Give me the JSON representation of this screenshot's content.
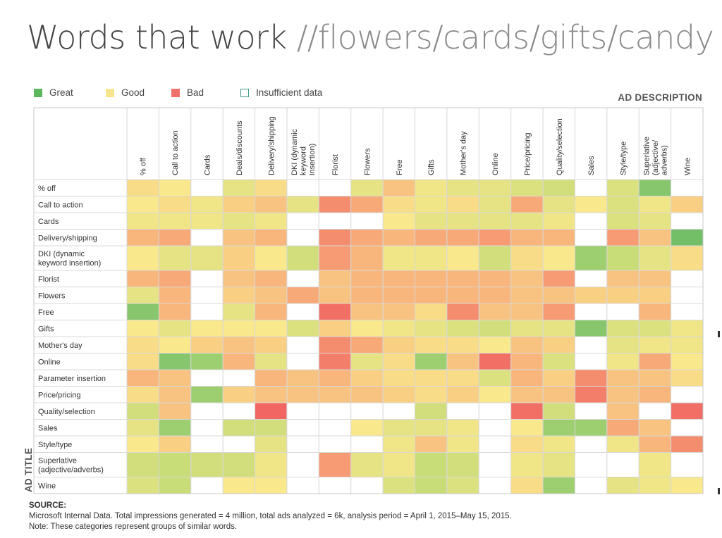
{
  "page": {
    "title_main": "Words that work",
    "title_sub": "//flowers/cards/gifts/candy"
  },
  "legend": [
    {
      "label": "Great",
      "color": "#5cb85c",
      "filled": true
    },
    {
      "label": "Good",
      "color": "#f6e58d",
      "filled": true
    },
    {
      "label": "Bad",
      "color": "#f0716a",
      "filled": true
    },
    {
      "label": "Insufficient data",
      "color": "#3a9a8a",
      "filled": false
    }
  ],
  "source": {
    "label": "SOURCE:",
    "line1": "Microsoft Internal Data. Total impressions generated = 4 million, total ads analyzed = 6k, analysis period = April 1, 2015–May 15, 2015.",
    "line2": "Note: These categories represent groups of similar words."
  },
  "chart_data": {
    "type": "heatmap",
    "title": "Words that work //flowers/cards/gifts/candy",
    "xlabel": "AD DESCRIPTION",
    "ylabel": "AD TITLE",
    "value_scale": "0 = Bad (red), 0.5 = Good (yellow), 1 = Great (green), null = Insufficient data",
    "columns": [
      "% off",
      "Call to action",
      "Cards",
      "Deals/discounts",
      "Delivery/shipping",
      "DKI (dynamic keyword insertion)",
      "Florist",
      "Flowers",
      "Free",
      "Gifts",
      "Mother's day",
      "Online",
      "Price/pricing",
      "Quality/selection",
      "Sales",
      "Style/type",
      "Superlative (adjective/ adverbs)",
      "Wine"
    ],
    "rows": [
      "% off",
      "Call to action",
      "Cards",
      "Delivery/shipping",
      "DKI (dynamic keyword insertion)",
      "Florist",
      "Flowers",
      "Free",
      "Gifts",
      "Mother's day",
      "Online",
      "Parameter insertion",
      "Price/pricing",
      "Quality/selection",
      "Sales",
      "Style/type",
      "Superlative (adjective/adverbs)",
      "Wine"
    ],
    "values": [
      [
        0.45,
        0.5,
        null,
        0.6,
        0.45,
        null,
        null,
        0.6,
        0.35,
        0.55,
        0.6,
        0.6,
        0.65,
        0.7,
        null,
        0.65,
        0.9,
        null
      ],
      [
        0.5,
        0.45,
        0.55,
        0.4,
        0.35,
        0.6,
        0.15,
        0.25,
        0.45,
        0.55,
        0.45,
        0.6,
        0.25,
        0.6,
        0.5,
        0.65,
        0.55,
        0.4
      ],
      [
        0.55,
        0.55,
        0.55,
        0.6,
        0.55,
        null,
        null,
        null,
        0.5,
        0.6,
        0.6,
        0.6,
        0.6,
        0.55,
        null,
        0.65,
        0.6,
        null
      ],
      [
        0.3,
        0.25,
        null,
        0.35,
        0.3,
        null,
        0.15,
        0.25,
        0.3,
        0.25,
        0.25,
        0.2,
        0.3,
        0.3,
        null,
        0.2,
        0.35,
        0.95
      ],
      [
        0.5,
        0.6,
        0.6,
        0.4,
        0.5,
        0.7,
        0.2,
        0.3,
        0.55,
        0.55,
        0.5,
        0.7,
        0.45,
        0.5,
        0.85,
        0.75,
        0.6,
        0.45
      ],
      [
        0.3,
        0.25,
        null,
        0.35,
        0.3,
        null,
        0.35,
        0.3,
        0.3,
        0.3,
        0.3,
        0.3,
        0.35,
        0.2,
        null,
        0.35,
        0.35,
        null
      ],
      [
        0.6,
        0.3,
        null,
        0.4,
        0.35,
        0.25,
        0.35,
        0.3,
        0.3,
        0.3,
        0.3,
        0.3,
        0.35,
        0.35,
        0.4,
        0.4,
        0.4,
        null
      ],
      [
        0.9,
        0.3,
        null,
        0.6,
        0.3,
        null,
        0.05,
        0.35,
        0.35,
        0.45,
        0.15,
        0.35,
        0.35,
        0.2,
        null,
        null,
        0.3,
        null
      ],
      [
        0.5,
        0.6,
        0.5,
        0.5,
        0.5,
        0.65,
        0.4,
        0.5,
        0.55,
        0.6,
        0.65,
        0.7,
        0.6,
        0.6,
        0.9,
        0.65,
        0.65,
        0.55
      ],
      [
        0.45,
        0.5,
        0.4,
        0.35,
        0.4,
        null,
        0.15,
        0.25,
        0.4,
        0.45,
        0.45,
        0.5,
        0.35,
        0.4,
        null,
        0.6,
        0.55,
        0.55
      ],
      [
        0.45,
        0.9,
        0.85,
        0.3,
        0.6,
        null,
        0.1,
        0.6,
        0.45,
        0.85,
        0.35,
        0.05,
        0.3,
        0.65,
        null,
        0.55,
        0.25,
        0.5
      ],
      [
        0.3,
        0.35,
        null,
        null,
        0.3,
        0.35,
        0.3,
        0.4,
        0.45,
        0.45,
        0.45,
        0.65,
        0.3,
        0.4,
        0.15,
        0.35,
        0.35,
        0.45
      ],
      [
        0.45,
        0.35,
        0.85,
        0.4,
        0.35,
        0.35,
        0.35,
        0.35,
        0.4,
        0.45,
        0.4,
        0.5,
        0.35,
        0.35,
        0.1,
        0.35,
        0.3,
        null
      ],
      [
        0.7,
        0.35,
        null,
        null,
        0.02,
        null,
        null,
        null,
        null,
        0.7,
        null,
        null,
        0.05,
        0.7,
        null,
        0.35,
        null,
        0.05
      ],
      [
        0.6,
        0.85,
        null,
        0.7,
        0.7,
        null,
        null,
        0.5,
        0.6,
        0.6,
        0.55,
        null,
        0.5,
        0.85,
        0.85,
        0.25,
        0.35,
        null
      ],
      [
        0.5,
        0.4,
        null,
        null,
        0.6,
        null,
        null,
        null,
        0.55,
        0.35,
        0.55,
        null,
        0.45,
        0.55,
        null,
        0.55,
        0.3,
        0.15
      ],
      [
        0.7,
        0.75,
        0.7,
        0.7,
        0.55,
        null,
        0.2,
        0.6,
        0.55,
        0.75,
        0.7,
        null,
        0.55,
        0.6,
        null,
        null,
        0.55,
        null
      ],
      [
        0.65,
        0.75,
        null,
        0.5,
        0.5,
        null,
        null,
        null,
        0.65,
        0.75,
        0.65,
        null,
        0.45,
        0.85,
        null,
        0.6,
        0.55,
        0.5
      ]
    ]
  }
}
